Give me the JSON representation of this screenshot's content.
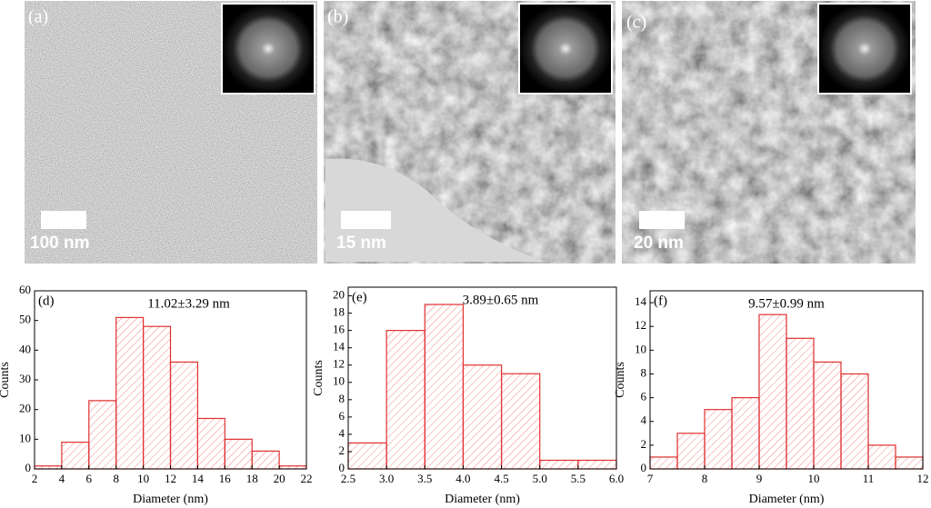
{
  "images": [
    {
      "label": "(a)",
      "scale_bar": "100 nm"
    },
    {
      "label": "(b)",
      "scale_bar": "15 nm"
    },
    {
      "label": "(c)",
      "scale_bar": "20 nm"
    }
  ],
  "chart_data": [
    {
      "type": "histogram",
      "label": "(d)",
      "annotation": "11.02±3.29 nm",
      "x_label": "Diameter (nm)",
      "y_label": "Counts",
      "color": "#e03030",
      "bins": [
        2,
        4,
        6,
        8,
        10,
        12,
        14,
        16,
        18,
        20,
        22
      ],
      "values": [
        1,
        9,
        23,
        51,
        48,
        36,
        17,
        10,
        6,
        1
      ],
      "xlim": [
        2,
        22
      ],
      "xticks": [
        2,
        4,
        6,
        8,
        10,
        12,
        14,
        16,
        18,
        20,
        22
      ],
      "ylim": [
        0,
        60
      ],
      "yticks": [
        0,
        10,
        20,
        30,
        40,
        50,
        60
      ]
    },
    {
      "type": "histogram",
      "label": "(e)",
      "annotation": "3.89±0.65 nm",
      "x_label": "Diameter (nm)",
      "y_label": "Counts",
      "color": "#e03030",
      "bins": [
        2.5,
        3,
        3.5,
        4,
        4.5,
        5,
        5.5,
        6
      ],
      "values": [
        3,
        16,
        19,
        12,
        11,
        1,
        1
      ],
      "xlim": [
        2.5,
        6
      ],
      "xticks": [
        2.5,
        {
          "value": 3,
          "label": "3.0"
        },
        3.5,
        {
          "value": 4,
          "label": "4.0"
        },
        4.5,
        {
          "value": 5,
          "label": "5.0"
        },
        5.5,
        {
          "value": 6,
          "label": "6.0"
        }
      ],
      "ylim": [
        0,
        21
      ],
      "yticks": [
        0,
        2,
        4,
        6,
        8,
        10,
        12,
        14,
        16,
        18,
        20
      ]
    },
    {
      "type": "histogram",
      "label": "(f)",
      "annotation": "9.57±0.99 nm",
      "x_label": "Diameter (nm)",
      "y_label": "Counts",
      "color": "#e03030",
      "bins": [
        7,
        7.5,
        8,
        8.5,
        9,
        9.5,
        10,
        10.5,
        11,
        11.5,
        12
      ],
      "values": [
        1,
        3,
        5,
        6,
        13,
        11,
        9,
        8,
        2,
        1
      ],
      "xlim": [
        7,
        12
      ],
      "xticks": [
        7,
        8,
        9,
        10,
        11,
        12
      ],
      "ylim": [
        0,
        15
      ],
      "yticks": [
        0,
        2,
        4,
        6,
        8,
        10,
        12,
        14
      ]
    }
  ]
}
